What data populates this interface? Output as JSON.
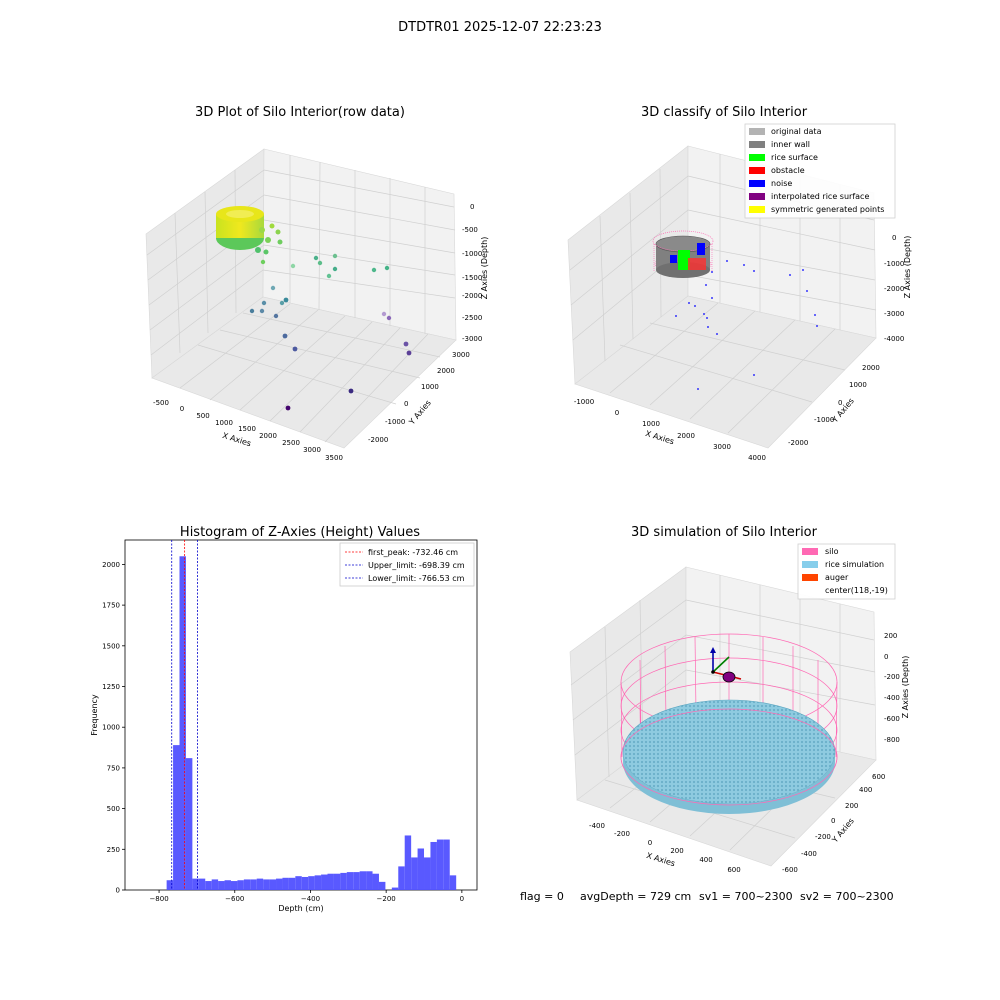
{
  "suptitle": "DTDTR01 2025-12-07 22:23:23",
  "footer": {
    "flag": "flag = 0",
    "avg_depth": "avgDepth = 729 cm",
    "sv1": "sv1 = 700~2300",
    "sv2": "sv2 = 700~2300"
  },
  "chart_data": [
    {
      "type": "scatter",
      "title": "3D Plot of Silo Interior(row data)",
      "xlabel": "X Axies",
      "ylabel": "Y Axies",
      "zlabel": "Z Axies (Depth)",
      "xticks": [
        "-500",
        "0",
        "500",
        "1000",
        "1500",
        "2000",
        "2500",
        "3000",
        "3500"
      ],
      "yticks": [
        "-2000",
        "-1000",
        "0",
        "1000",
        "2000",
        "3000"
      ],
      "zticks": [
        "0",
        "-500",
        "-1000",
        "-1500",
        "-2000",
        "-2500",
        "-3000"
      ],
      "xlim": [
        -600,
        3600
      ],
      "ylim": [
        -2300,
        3200
      ],
      "zlim": [
        -3100,
        100
      ],
      "grid": true,
      "colormap": "viridis by depth",
      "outlier_points": [
        {
          "x": 1500,
          "y": 2600,
          "z": -1150
        },
        {
          "x": 1200,
          "y": 2200,
          "z": -1300
        },
        {
          "x": 1000,
          "y": 1700,
          "z": -1200
        },
        {
          "x": 2500,
          "y": 2400,
          "z": -1400
        },
        {
          "x": 2800,
          "y": 2800,
          "z": -1350
        },
        {
          "x": 600,
          "y": 800,
          "z": -1450
        },
        {
          "x": 300,
          "y": 400,
          "z": -2150
        },
        {
          "x": 400,
          "y": 200,
          "z": -2350
        },
        {
          "x": 100,
          "y": -300,
          "z": -2500
        },
        {
          "x": 500,
          "y": 100,
          "z": -2700
        },
        {
          "x": 900,
          "y": 300,
          "z": -2900
        },
        {
          "x": 3000,
          "y": 2600,
          "z": -2450
        },
        {
          "x": 3200,
          "y": 2300,
          "z": -2600
        },
        {
          "x": 3300,
          "y": 2100,
          "z": -2900
        },
        {
          "x": 2500,
          "y": 1200,
          "z": -3050
        },
        {
          "x": 1500,
          "y": -100,
          "z": -3100
        }
      ]
    },
    {
      "type": "scatter",
      "title": "3D classify of Silo Interior",
      "xlabel": "X Axies",
      "ylabel": "Y Axies",
      "zlabel": "Z Axies (Depth)",
      "xticks": [
        "-1000",
        "0",
        "1000",
        "2000",
        "3000",
        "4000"
      ],
      "yticks": [
        "-2000",
        "-1000",
        "0",
        "1000",
        "2000"
      ],
      "zticks": [
        "0",
        "-1000",
        "-2000",
        "-3000",
        "-4000"
      ],
      "grid": true,
      "legend_placement": "upper-right",
      "legend": [
        {
          "label": "original data",
          "color": "#b3b3b3"
        },
        {
          "label": "inner wall",
          "color": "#808080"
        },
        {
          "label": "rice surface",
          "color": "#00ff00"
        },
        {
          "label": "obstacle",
          "color": "#ff0000"
        },
        {
          "label": "noise",
          "color": "#0000ff"
        },
        {
          "label": "interpolated rice surface",
          "color": "#800080"
        },
        {
          "label": "symmetric generated points",
          "color": "#ffff00"
        }
      ]
    },
    {
      "type": "bar",
      "title": "Histogram of Z-Axies (Height) Values",
      "xlabel": "Depth (cm)",
      "ylabel": "Frequency",
      "xlim": [
        -890,
        40
      ],
      "ylim": [
        0,
        2150
      ],
      "xticks": [
        -800,
        -600,
        -400,
        -200,
        0
      ],
      "yticks": [
        0,
        250,
        500,
        750,
        1000,
        1250,
        1500,
        1750,
        2000
      ],
      "bar_color": "#5050ff",
      "bin_width": 17,
      "bins_start": [
        -780,
        -763,
        -746,
        -729,
        -712,
        -695,
        -678,
        -661,
        -644,
        -627,
        -610,
        -593,
        -576,
        -559,
        -542,
        -525,
        -508,
        -491,
        -474,
        -457,
        -440,
        -423,
        -406,
        -389,
        -372,
        -355,
        -338,
        -321,
        -304,
        -287,
        -270,
        -253,
        -236,
        -219,
        -202,
        -185,
        -168,
        -151,
        -134,
        -117,
        -100,
        -83,
        -66,
        -49,
        -32,
        -15
      ],
      "values": [
        60,
        890,
        2050,
        810,
        70,
        70,
        55,
        65,
        55,
        60,
        55,
        60,
        65,
        65,
        70,
        65,
        65,
        70,
        75,
        75,
        85,
        80,
        85,
        90,
        95,
        100,
        100,
        105,
        110,
        110,
        115,
        115,
        100,
        50,
        0,
        15,
        145,
        335,
        200,
        255,
        200,
        295,
        310,
        310,
        90,
        0
      ],
      "reference_lines": [
        {
          "label": "first_peak: -732.46 cm",
          "x": -732.46,
          "color": "#ff0000"
        },
        {
          "label": "Upper_limit: -698.39 cm",
          "x": -698.39,
          "color": "#0000cc"
        },
        {
          "label": "Lower_limit: -766.53 cm",
          "x": -766.53,
          "color": "#0000cc"
        }
      ],
      "legend_placement": "upper-right"
    },
    {
      "type": "scatter",
      "title": "3D simulation of Silo Interior",
      "xlabel": "X Axies",
      "ylabel": "Y Axies",
      "zlabel": "Z Axies (Depth)",
      "xticks": [
        "-400",
        "-200",
        "0",
        "200",
        "400",
        "600"
      ],
      "yticks": [
        "-600",
        "-400",
        "-200",
        "0",
        "200",
        "400",
        "600"
      ],
      "zticks": [
        "200",
        "0",
        "-200",
        "-400",
        "-600",
        "-800"
      ],
      "grid": true,
      "legend_placement": "upper-right",
      "legend": [
        {
          "label": "silo",
          "color": "#ff69b4"
        },
        {
          "label": "rice simulation",
          "color": "#87ceeb"
        },
        {
          "label": "auger",
          "color": "#ff4500"
        },
        {
          "label": "center(118,-19)",
          "color": ""
        }
      ]
    }
  ]
}
